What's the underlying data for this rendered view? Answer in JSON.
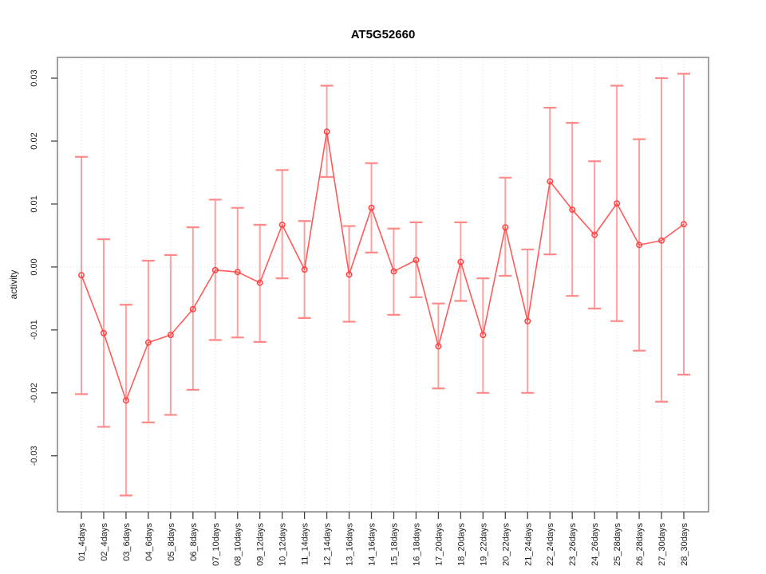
{
  "chart_data": {
    "type": "line",
    "title": "AT5G52660",
    "xlabel": "",
    "ylabel": "activity",
    "marker": "open-circle",
    "legend": "none",
    "grid": "vertical dotted gridline at every category; horizontal dotted gridline at y=0 only",
    "ylim": [
      -0.0389,
      0.0333
    ],
    "yticks": [
      -0.03,
      -0.02,
      -0.01,
      0.0,
      0.01,
      0.02,
      0.03
    ],
    "ytick_labels": [
      "-0.03",
      "-0.02",
      "-0.01",
      "0.00",
      "0.01",
      "0.02",
      "0.03"
    ],
    "categories": [
      "01_4days",
      "02_4days",
      "03_6days",
      "04_6days",
      "05_8days",
      "06_8days",
      "07_10days",
      "08_10days",
      "09_12days",
      "10_12days",
      "11_14days",
      "12_14days",
      "13_16days",
      "14_16days",
      "15_18days",
      "16_18days",
      "17_20days",
      "18_20days",
      "19_22days",
      "20_22days",
      "21_24days",
      "22_24days",
      "23_26days",
      "24_26days",
      "25_28days",
      "26_28days",
      "27_30days",
      "28_30days"
    ],
    "series": [
      {
        "name": "activity",
        "values": [
          -0.0013,
          -0.0105,
          -0.0212,
          -0.012,
          -0.0108,
          -0.0067,
          -0.0005,
          -0.0008,
          -0.0025,
          0.0067,
          -0.0004,
          0.0215,
          -0.0012,
          0.0094,
          -0.0007,
          0.0011,
          -0.0126,
          0.0008,
          -0.0108,
          0.0063,
          -0.0086,
          0.0136,
          0.0091,
          0.0051,
          0.0101,
          0.0035,
          0.0042,
          0.0068
        ],
        "error_high": [
          0.0175,
          0.0044,
          -0.006,
          0.001,
          0.0019,
          0.0063,
          0.0107,
          0.0094,
          0.0067,
          0.0154,
          0.0073,
          0.0288,
          0.0065,
          0.0165,
          0.0061,
          0.0071,
          -0.0058,
          0.0071,
          -0.0018,
          0.0142,
          0.0028,
          0.0253,
          0.0229,
          0.0168,
          0.0288,
          0.0203,
          0.03,
          0.0307
        ],
        "error_low": [
          -0.0202,
          -0.0254,
          -0.0363,
          -0.0247,
          -0.0235,
          -0.0195,
          -0.0116,
          -0.0112,
          -0.0119,
          -0.0018,
          -0.0081,
          0.0143,
          -0.0087,
          0.0023,
          -0.0076,
          -0.0048,
          -0.0193,
          -0.0054,
          -0.02,
          -0.0014,
          -0.02,
          0.002,
          -0.0046,
          -0.0066,
          -0.0086,
          -0.0133,
          -0.0214,
          -0.0171
        ]
      }
    ],
    "colors": {
      "series_line": "#ff5a5a",
      "marker_stroke": "#ff4040",
      "error_bar": "#ffa0a0",
      "error_cap": "#ff8989",
      "gridline": "#dcdcdc",
      "plot_border": "#8a8a8a",
      "tick": "#444444",
      "text": "#1a1a1a"
    }
  }
}
